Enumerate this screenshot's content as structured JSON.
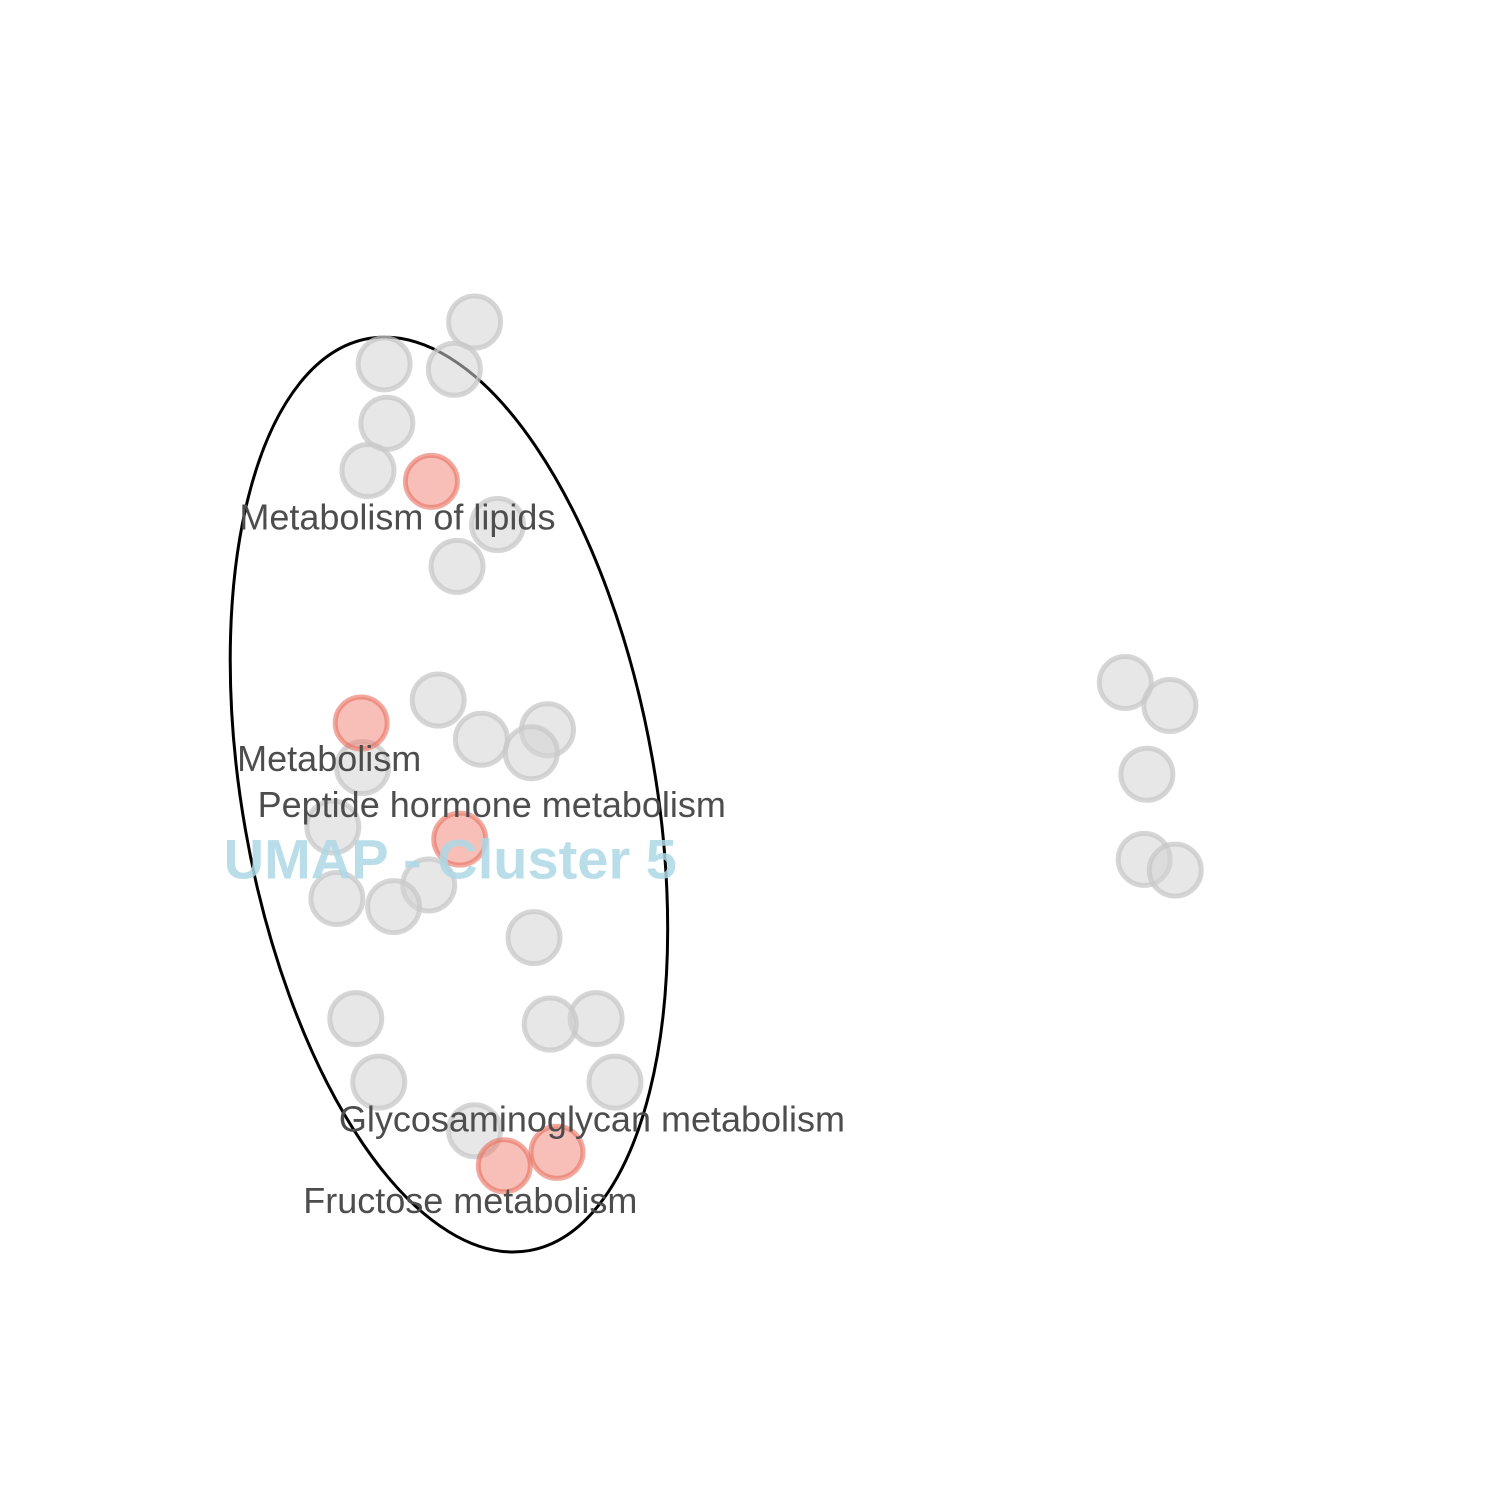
{
  "chart_data": {
    "type": "scatter",
    "title": "",
    "xlabel": "",
    "ylabel": "",
    "xlim": [
      0,
      100
    ],
    "ylim": [
      0,
      100
    ],
    "grid": false,
    "cluster_label": "UMAP - Cluster 5",
    "cluster_label_color": "#add8e6",
    "colors": {
      "background_point": "#d3d3d3",
      "highlight_point": "#f08070",
      "outline": "#000000",
      "label_text": "#4d4d4d"
    },
    "cluster_outline": {
      "shape": "ellipse",
      "center": [
        27.7,
        46.7
      ],
      "rx": 15.3,
      "ry": 34.3,
      "rotation_deg": -10
    },
    "points": [
      {
        "x": 29.6,
        "y": 81.7,
        "highlight": false
      },
      {
        "x": 22.9,
        "y": 78.6,
        "highlight": false
      },
      {
        "x": 28.1,
        "y": 78.2,
        "highlight": false
      },
      {
        "x": 23.1,
        "y": 74.2,
        "highlight": false
      },
      {
        "x": 21.7,
        "y": 70.7,
        "highlight": false
      },
      {
        "x": 31.3,
        "y": 66.7,
        "highlight": false
      },
      {
        "x": 28.3,
        "y": 63.6,
        "highlight": false
      },
      {
        "x": 26.9,
        "y": 53.7,
        "highlight": false
      },
      {
        "x": 30.1,
        "y": 50.8,
        "highlight": false
      },
      {
        "x": 35.0,
        "y": 51.5,
        "highlight": false
      },
      {
        "x": 33.8,
        "y": 49.8,
        "highlight": false
      },
      {
        "x": 21.3,
        "y": 48.7,
        "highlight": false
      },
      {
        "x": 19.1,
        "y": 44.3,
        "highlight": false
      },
      {
        "x": 26.2,
        "y": 40.0,
        "highlight": false
      },
      {
        "x": 19.4,
        "y": 39.0,
        "highlight": false
      },
      {
        "x": 23.6,
        "y": 38.4,
        "highlight": false
      },
      {
        "x": 34.0,
        "y": 36.1,
        "highlight": false
      },
      {
        "x": 20.8,
        "y": 30.1,
        "highlight": false
      },
      {
        "x": 38.6,
        "y": 30.1,
        "highlight": false
      },
      {
        "x": 35.2,
        "y": 29.7,
        "highlight": false
      },
      {
        "x": 22.5,
        "y": 25.4,
        "highlight": false
      },
      {
        "x": 40.0,
        "y": 25.4,
        "highlight": false
      },
      {
        "x": 29.6,
        "y": 21.8,
        "highlight": false
      },
      {
        "x": 77.8,
        "y": 55.0,
        "highlight": false
      },
      {
        "x": 81.1,
        "y": 53.3,
        "highlight": false
      },
      {
        "x": 79.4,
        "y": 48.2,
        "highlight": false
      },
      {
        "x": 79.2,
        "y": 41.9,
        "highlight": false
      },
      {
        "x": 81.5,
        "y": 41.1,
        "highlight": false
      },
      {
        "x": 26.4,
        "y": 69.9,
        "highlight": true,
        "label": "Metabolism of lipids"
      },
      {
        "x": 21.2,
        "y": 52.0,
        "highlight": true,
        "label": "Metabolism"
      },
      {
        "x": 28.5,
        "y": 43.4,
        "highlight": true,
        "label": "Peptide hormone metabolism"
      },
      {
        "x": 35.7,
        "y": 20.2,
        "highlight": true,
        "label": "Glycosaminoglycan metabolism"
      },
      {
        "x": 31.8,
        "y": 19.2,
        "highlight": true,
        "label": "Fructose metabolism"
      }
    ]
  }
}
